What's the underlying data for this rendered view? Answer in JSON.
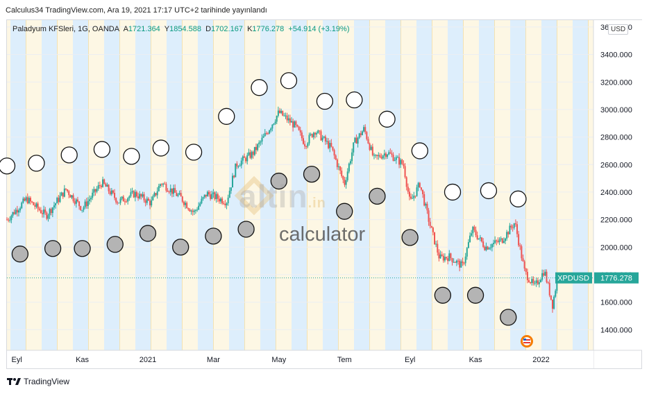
{
  "header": {
    "published_text": "Calculus34 TradingView.com, Ara 19, 2021 17:17 UTC+2 tarihinde yayınlandı"
  },
  "legend": {
    "title": "Paladyum KFSleri, 1G, OANDA",
    "open_label": "A",
    "open": "1721.364",
    "high_label": "Y",
    "high": "1854.588",
    "low_label": "D",
    "low": "1702.167",
    "close_label": "K",
    "close": "1776.278",
    "change": "+54.914 (+3.19%)"
  },
  "currency_badge": "USD",
  "watermark": {
    "brand": "altin",
    "suffix": ".in",
    "subtitle": "calculator"
  },
  "footer": {
    "brand": "TradingView",
    "logo_icon": "tradingview-logo-icon"
  },
  "colors": {
    "up": "#26a69a",
    "down": "#ef5350",
    "band_blue": "#ddeefc",
    "band_cream": "#fdf7e4",
    "price_tag": "#26a69a",
    "grey_circle": "#b4b4b4"
  },
  "chart_data": {
    "type": "candlestick",
    "title": "Paladyum KFSleri, 1G, OANDA",
    "currency": "USD",
    "symbol": "XPDUSD",
    "last_price": 1776.278,
    "y_range": [
      1250,
      3650
    ],
    "y_ticks": [
      "3600.000",
      "3400.000",
      "3200.000",
      "3000.000",
      "2800.000",
      "2600.000",
      "2400.000",
      "2200.000",
      "2000.000",
      "1800.000",
      "1600.000",
      "1400.000"
    ],
    "y_tick_values": [
      3600,
      3400,
      3200,
      3000,
      2800,
      2600,
      2400,
      2200,
      2000,
      1800,
      1600,
      1400
    ],
    "x_ticks": [
      "Eyl",
      "Kas",
      "2021",
      "Mar",
      "May",
      "Tem",
      "Eyl",
      "Kas",
      "2022"
    ],
    "x_tick_months": [
      0,
      2,
      4,
      6,
      8,
      10,
      12,
      14,
      16
    ],
    "x_range_months": [
      -0.3,
      17.6
    ],
    "price_path": [
      {
        "m": -0.3,
        "p": 2200
      },
      {
        "m": 0.3,
        "p": 2350
      },
      {
        "m": 0.9,
        "p": 2230
      },
      {
        "m": 1.5,
        "p": 2420
      },
      {
        "m": 2.0,
        "p": 2280
      },
      {
        "m": 2.6,
        "p": 2470
      },
      {
        "m": 3.1,
        "p": 2330
      },
      {
        "m": 3.6,
        "p": 2390
      },
      {
        "m": 4.1,
        "p": 2320
      },
      {
        "m": 4.4,
        "p": 2470
      },
      {
        "m": 5.0,
        "p": 2360
      },
      {
        "m": 5.4,
        "p": 2250
      },
      {
        "m": 5.8,
        "p": 2390
      },
      {
        "m": 6.4,
        "p": 2330
      },
      {
        "m": 6.7,
        "p": 2600
      },
      {
        "m": 7.2,
        "p": 2680
      },
      {
        "m": 7.6,
        "p": 2820
      },
      {
        "m": 8.0,
        "p": 2980
      },
      {
        "m": 8.5,
        "p": 2880
      },
      {
        "m": 8.8,
        "p": 2750
      },
      {
        "m": 9.1,
        "p": 2850
      },
      {
        "m": 9.6,
        "p": 2720
      },
      {
        "m": 10.0,
        "p": 2460
      },
      {
        "m": 10.3,
        "p": 2760
      },
      {
        "m": 10.6,
        "p": 2860
      },
      {
        "m": 10.9,
        "p": 2640
      },
      {
        "m": 11.3,
        "p": 2690
      },
      {
        "m": 11.8,
        "p": 2600
      },
      {
        "m": 12.0,
        "p": 2320
      },
      {
        "m": 12.3,
        "p": 2460
      },
      {
        "m": 12.6,
        "p": 2170
      },
      {
        "m": 12.9,
        "p": 1920
      },
      {
        "m": 13.2,
        "p": 1930
      },
      {
        "m": 13.6,
        "p": 1860
      },
      {
        "m": 13.9,
        "p": 2130
      },
      {
        "m": 14.3,
        "p": 2000
      },
      {
        "m": 14.8,
        "p": 2050
      },
      {
        "m": 15.2,
        "p": 2180
      },
      {
        "m": 15.5,
        "p": 1820
      },
      {
        "m": 15.8,
        "p": 1710
      },
      {
        "m": 16.1,
        "p": 1830
      },
      {
        "m": 16.35,
        "p": 1580
      },
      {
        "m": 16.5,
        "p": 1776
      }
    ],
    "white_circles": [
      {
        "m": -0.3,
        "p": 2590
      },
      {
        "m": 0.6,
        "p": 2610
      },
      {
        "m": 1.6,
        "p": 2670
      },
      {
        "m": 2.6,
        "p": 2710
      },
      {
        "m": 3.5,
        "p": 2660
      },
      {
        "m": 4.4,
        "p": 2720
      },
      {
        "m": 5.4,
        "p": 2690
      },
      {
        "m": 6.4,
        "p": 2950
      },
      {
        "m": 7.4,
        "p": 3160
      },
      {
        "m": 8.3,
        "p": 3210
      },
      {
        "m": 9.4,
        "p": 3060
      },
      {
        "m": 10.3,
        "p": 3070
      },
      {
        "m": 11.3,
        "p": 2930
      },
      {
        "m": 12.3,
        "p": 2700
      },
      {
        "m": 13.3,
        "p": 2400
      },
      {
        "m": 14.4,
        "p": 2410
      },
      {
        "m": 15.3,
        "p": 2350
      }
    ],
    "grey_circles": [
      {
        "m": 0.1,
        "p": 1950
      },
      {
        "m": 1.1,
        "p": 1990
      },
      {
        "m": 2.0,
        "p": 1990
      },
      {
        "m": 3.0,
        "p": 2020
      },
      {
        "m": 4.0,
        "p": 2100
      },
      {
        "m": 5.0,
        "p": 2000
      },
      {
        "m": 6.0,
        "p": 2080
      },
      {
        "m": 7.0,
        "p": 2130
      },
      {
        "m": 8.0,
        "p": 2480
      },
      {
        "m": 9.0,
        "p": 2530
      },
      {
        "m": 10.0,
        "p": 2260
      },
      {
        "m": 11.0,
        "p": 2370
      },
      {
        "m": 12.0,
        "p": 2070
      },
      {
        "m": 13.0,
        "p": 1650
      },
      {
        "m": 14.0,
        "p": 1650
      },
      {
        "m": 15.0,
        "p": 1490
      }
    ]
  }
}
